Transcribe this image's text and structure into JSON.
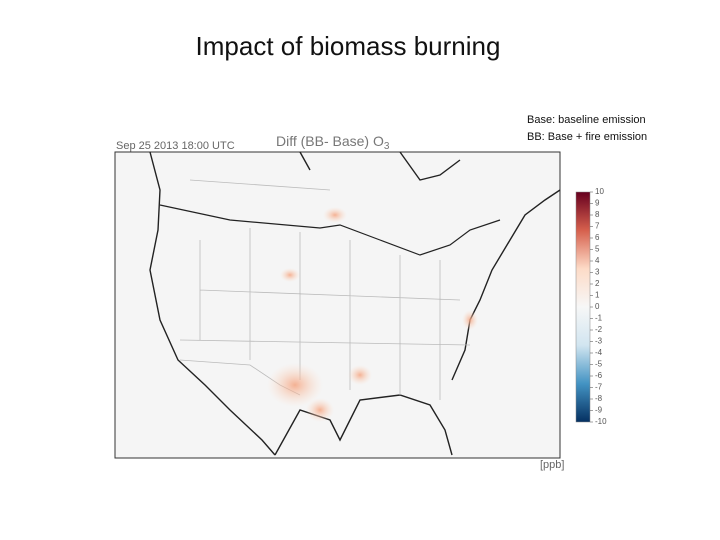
{
  "slide": {
    "title": "Impact of biomass burning",
    "notes": [
      "Base: baseline emission",
      "BB: Base + fire emission"
    ]
  },
  "map": {
    "timestamp": "Sep 25 2013 18:00 UTC",
    "title": "Diff (BB- Base) O",
    "title_subscript": "3",
    "colorbar": {
      "clim": [
        -10,
        10
      ],
      "ticks": [
        10,
        9,
        8,
        7,
        6,
        5,
        4,
        3,
        2,
        1,
        0,
        -1,
        -2,
        -3,
        -4,
        -5,
        -6,
        -7,
        -8,
        -9,
        -10
      ],
      "unit": "[ppb]",
      "colors": [
        "#67001f",
        "#d6604d",
        "#fddbc7",
        "#f7f7f7",
        "#d1e5f0",
        "#4393c3",
        "#053061"
      ]
    }
  }
}
